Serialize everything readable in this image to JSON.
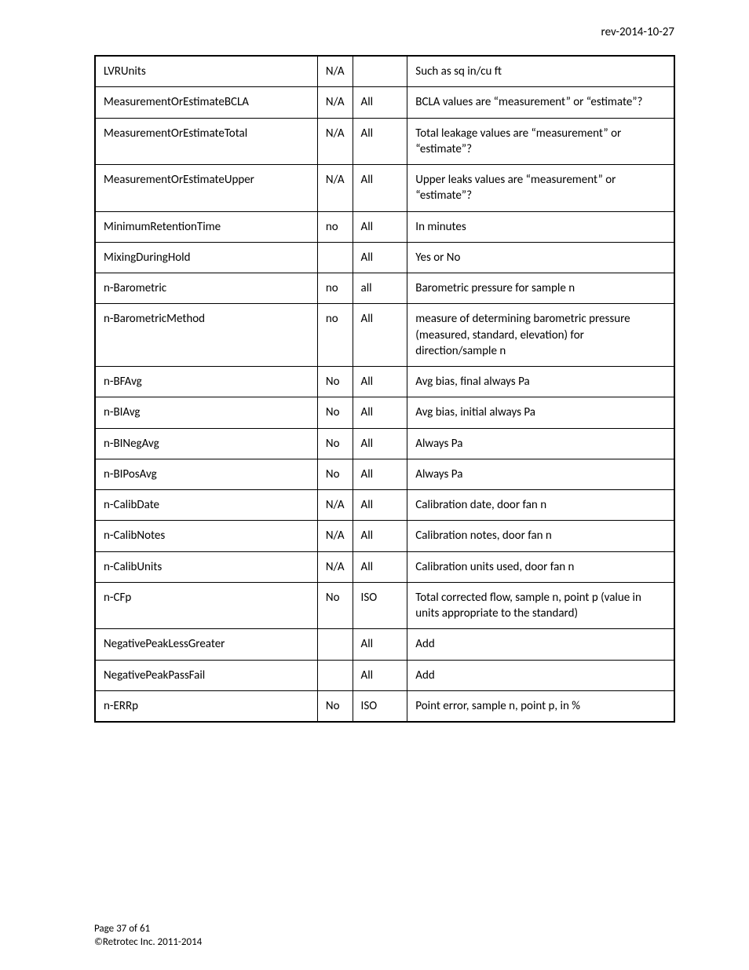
{
  "header": {
    "revision": "rev-2014-10-27"
  },
  "table": {
    "rows": [
      {
        "c1": "LVRUnits",
        "c2": "N/A",
        "c3": "",
        "c4": "Such as sq in/cu ft"
      },
      {
        "c1": "MeasurementOrEstimateBCLA",
        "c2": "N/A",
        "c3": "All",
        "c4": "BCLA values are “measurement” or “estimate”?"
      },
      {
        "c1": "MeasurementOrEstimateTotal",
        "c2": "N/A",
        "c3": "All",
        "c4": "Total leakage values are “measurement” or “estimate”?"
      },
      {
        "c1": "MeasurementOrEstimateUpper",
        "c2": "N/A",
        "c3": "All",
        "c4": "Upper leaks values are “measurement” or “estimate”?"
      },
      {
        "c1": "MinimumRetentionTime",
        "c2": "no",
        "c3": "All",
        "c4": "In minutes"
      },
      {
        "c1": "MixingDuringHold",
        "c2": "",
        "c3": "All",
        "c4": "Yes or No"
      },
      {
        "c1": "n-Barometric",
        "c2": "no",
        "c3": "all",
        "c4": "Barometric pressure for sample n"
      },
      {
        "c1": "n-BarometricMethod",
        "c2": "no",
        "c3": "All",
        "c4": "measure of determining barometric pressure (measured, standard, elevation) for direction/sample n"
      },
      {
        "c1": "n-BFAvg",
        "c2": "No",
        "c3": "All",
        "c4": "Avg bias, final always Pa"
      },
      {
        "c1": "n-BIAvg",
        "c2": "No",
        "c3": "All",
        "c4": "Avg bias, initial always Pa"
      },
      {
        "c1": "n-BINegAvg",
        "c2": "No",
        "c3": "All",
        "c4": "Always Pa"
      },
      {
        "c1": "n-BIPosAvg",
        "c2": "No",
        "c3": "All",
        "c4": "Always Pa"
      },
      {
        "c1": "n-CalibDate",
        "c2": "N/A",
        "c3": "All",
        "c4": "Calibration date, door fan n"
      },
      {
        "c1": "n-CalibNotes",
        "c2": "N/A",
        "c3": "All",
        "c4": "Calibration notes, door fan n"
      },
      {
        "c1": "n-CalibUnits",
        "c2": "N/A",
        "c3": "All",
        "c4": "Calibration units used, door fan n"
      },
      {
        "c1": "n-CFp",
        "c2": "No",
        "c3": "ISO",
        "c4": "Total corrected flow, sample n, point p (value in units appropriate to the standard)"
      },
      {
        "c1": "NegativePeakLessGreater",
        "c2": "",
        "c3": "All",
        "c4": "Add"
      },
      {
        "c1": "NegativePeakPassFail",
        "c2": "",
        "c3": "All",
        "c4": "Add"
      },
      {
        "c1": "n-ERRp",
        "c2": "No",
        "c3": "ISO",
        "c4": "Point error, sample n, point p, in %"
      }
    ]
  },
  "footer": {
    "page": "Page 37 of 61",
    "copyright": "©Retrotec Inc. 2011-2014"
  }
}
